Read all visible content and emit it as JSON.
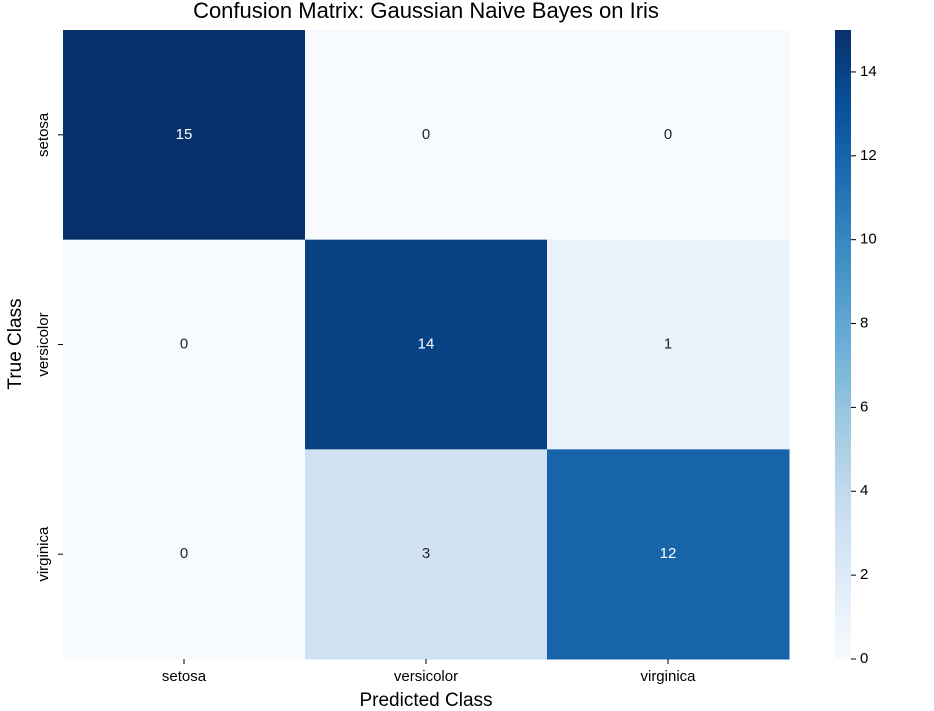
{
  "chart_data": {
    "type": "heatmap",
    "title": "Confusion Matrix: Gaussian Naive Bayes on Iris",
    "xlabel": "Predicted Class",
    "ylabel": "True Class",
    "x_categories": [
      "setosa",
      "versicolor",
      "virginica"
    ],
    "y_categories": [
      "setosa",
      "versicolor",
      "virginica"
    ],
    "values": [
      [
        15,
        0,
        0
      ],
      [
        0,
        14,
        1
      ],
      [
        0,
        3,
        12
      ]
    ],
    "colormap": [
      "#f7fbff",
      "#deebf7",
      "#c6dbef",
      "#9ecae1",
      "#6baed6",
      "#4292c6",
      "#2171b5",
      "#08519c",
      "#08306b"
    ],
    "zlim": [
      0,
      15
    ],
    "zticks": [
      0,
      2,
      4,
      6,
      8,
      10,
      12,
      14
    ]
  }
}
